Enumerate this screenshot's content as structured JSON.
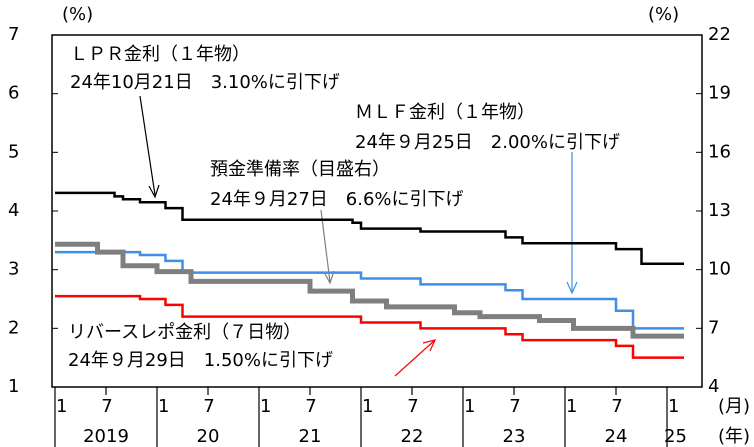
{
  "chart_data": {
    "type": "line",
    "x": [
      "2019-01",
      "2019-02",
      "2019-03",
      "2019-04",
      "2019-05",
      "2019-06",
      "2019-07",
      "2019-08",
      "2019-09",
      "2019-10",
      "2019-11",
      "2019-12",
      "2020-01",
      "2020-02",
      "2020-03",
      "2020-04",
      "2020-05",
      "2020-06",
      "2020-07",
      "2020-08",
      "2020-09",
      "2020-10",
      "2020-11",
      "2020-12",
      "2021-01",
      "2021-02",
      "2021-03",
      "2021-04",
      "2021-05",
      "2021-06",
      "2021-07",
      "2021-08",
      "2021-09",
      "2021-10",
      "2021-11",
      "2021-12",
      "2022-01",
      "2022-02",
      "2022-03",
      "2022-04",
      "2022-05",
      "2022-06",
      "2022-07",
      "2022-08",
      "2022-09",
      "2022-10",
      "2022-11",
      "2022-12",
      "2023-01",
      "2023-02",
      "2023-03",
      "2023-04",
      "2023-05",
      "2023-06",
      "2023-07",
      "2023-08",
      "2023-09",
      "2023-10",
      "2023-11",
      "2023-12",
      "2024-01",
      "2024-02",
      "2024-03",
      "2024-04",
      "2024-05",
      "2024-06",
      "2024-07",
      "2024-08",
      "2024-09",
      "2024-10",
      "2024-11",
      "2024-12",
      "2025-01",
      "2025-02",
      "2025-03"
    ],
    "xticks": [
      {
        "value": "2019-01",
        "label": "1"
      },
      {
        "value": "2019-07",
        "label": "7"
      },
      {
        "value": "2020-01",
        "label": "1"
      },
      {
        "value": "2020-07",
        "label": "7"
      },
      {
        "value": "2021-01",
        "label": "1"
      },
      {
        "value": "2021-07",
        "label": "7"
      },
      {
        "value": "2022-01",
        "label": "1"
      },
      {
        "value": "2022-07",
        "label": "7"
      },
      {
        "value": "2023-01",
        "label": "1"
      },
      {
        "value": "2023-07",
        "label": "7"
      },
      {
        "value": "2024-01",
        "label": "1"
      },
      {
        "value": "2024-07",
        "label": "7"
      },
      {
        "value": "2025-01",
        "label": "1"
      }
    ],
    "years": [
      {
        "value": "2019-07",
        "label": "2019"
      },
      {
        "value": "2020-07",
        "label": "20"
      },
      {
        "value": "2021-07",
        "label": "21"
      },
      {
        "value": "2022-07",
        "label": "22"
      },
      {
        "value": "2023-07",
        "label": "23"
      },
      {
        "value": "2024-07",
        "label": "24"
      },
      {
        "value": "2025-02",
        "label": "25"
      }
    ],
    "month_unit": "(月)",
    "year_unit": "(年)",
    "ylabel": "(%)",
    "y2label": "(%)",
    "ylim": [
      1,
      7
    ],
    "yticks": [
      1,
      2,
      3,
      4,
      5,
      6,
      7
    ],
    "y2lim": [
      4,
      22
    ],
    "y2ticks": [
      4,
      7,
      10,
      13,
      16,
      19,
      22
    ],
    "series": [
      {
        "name": "ＬＰＲ金利（１年物）",
        "note": "24年10月21日　3.10%に引下げ",
        "color": "#000000",
        "values": [
          4.31,
          4.31,
          4.31,
          4.31,
          4.31,
          4.31,
          4.31,
          4.25,
          4.2,
          4.2,
          4.15,
          4.15,
          4.15,
          4.05,
          4.05,
          3.85,
          3.85,
          3.85,
          3.85,
          3.85,
          3.85,
          3.85,
          3.85,
          3.85,
          3.85,
          3.85,
          3.85,
          3.85,
          3.85,
          3.85,
          3.85,
          3.85,
          3.85,
          3.85,
          3.85,
          3.8,
          3.7,
          3.7,
          3.7,
          3.7,
          3.7,
          3.7,
          3.7,
          3.65,
          3.65,
          3.65,
          3.65,
          3.65,
          3.65,
          3.65,
          3.65,
          3.65,
          3.65,
          3.55,
          3.55,
          3.45,
          3.45,
          3.45,
          3.45,
          3.45,
          3.45,
          3.45,
          3.45,
          3.45,
          3.45,
          3.45,
          3.35,
          3.35,
          3.35,
          3.1,
          3.1,
          3.1,
          3.1,
          3.1,
          3.1
        ]
      },
      {
        "name": "ＭＬＦ金利（１年物）",
        "note": "24年９月25日　2.00%に引下げ",
        "color": "#3d8fe8",
        "values": [
          3.3,
          3.3,
          3.3,
          3.3,
          3.3,
          3.3,
          3.3,
          3.3,
          3.3,
          3.3,
          3.25,
          3.25,
          3.25,
          3.15,
          3.15,
          2.95,
          2.95,
          2.95,
          2.95,
          2.95,
          2.95,
          2.95,
          2.95,
          2.95,
          2.95,
          2.95,
          2.95,
          2.95,
          2.95,
          2.95,
          2.95,
          2.95,
          2.95,
          2.95,
          2.95,
          2.95,
          2.85,
          2.85,
          2.85,
          2.85,
          2.85,
          2.85,
          2.85,
          2.75,
          2.75,
          2.75,
          2.75,
          2.75,
          2.75,
          2.75,
          2.75,
          2.75,
          2.75,
          2.65,
          2.65,
          2.5,
          2.5,
          2.5,
          2.5,
          2.5,
          2.5,
          2.5,
          2.5,
          2.5,
          2.5,
          2.5,
          2.3,
          2.3,
          2.0,
          2.0,
          2.0,
          2.0,
          2.0,
          2.0,
          2.0
        ]
      },
      {
        "name": "預金準備率（目盛右）",
        "note": "24年９月27日　6.6%に引下げ",
        "color": "#7f7f7f",
        "axis": "y2",
        "values": [
          11.3,
          11.3,
          11.3,
          11.3,
          11.3,
          10.9,
          10.9,
          10.9,
          10.2,
          10.2,
          10.2,
          10.2,
          9.9,
          9.9,
          9.9,
          9.9,
          9.4,
          9.4,
          9.4,
          9.4,
          9.4,
          9.4,
          9.4,
          9.4,
          9.4,
          9.4,
          9.4,
          9.4,
          9.4,
          9.4,
          8.9,
          8.9,
          8.9,
          8.9,
          8.9,
          8.4,
          8.4,
          8.4,
          8.4,
          8.1,
          8.1,
          8.1,
          8.1,
          8.1,
          8.1,
          8.1,
          8.1,
          7.8,
          7.8,
          7.8,
          7.6,
          7.6,
          7.6,
          7.6,
          7.6,
          7.6,
          7.6,
          7.4,
          7.4,
          7.4,
          7.4,
          7.0,
          7.0,
          7.0,
          7.0,
          7.0,
          7.0,
          7.0,
          6.6,
          6.6,
          6.6,
          6.6,
          6.6,
          6.6,
          6.6
        ]
      },
      {
        "name": "リバースレポ金利（７日物）",
        "note": "24年９月29日　1.50%に引下げ",
        "color": "#ff0000",
        "values": [
          2.55,
          2.55,
          2.55,
          2.55,
          2.55,
          2.55,
          2.55,
          2.55,
          2.55,
          2.55,
          2.5,
          2.5,
          2.5,
          2.4,
          2.4,
          2.2,
          2.2,
          2.2,
          2.2,
          2.2,
          2.2,
          2.2,
          2.2,
          2.2,
          2.2,
          2.2,
          2.2,
          2.2,
          2.2,
          2.2,
          2.2,
          2.2,
          2.2,
          2.2,
          2.2,
          2.2,
          2.1,
          2.1,
          2.1,
          2.1,
          2.1,
          2.1,
          2.1,
          2.0,
          2.0,
          2.0,
          2.0,
          2.0,
          2.0,
          2.0,
          2.0,
          2.0,
          2.0,
          1.9,
          1.9,
          1.8,
          1.8,
          1.8,
          1.8,
          1.8,
          1.8,
          1.8,
          1.8,
          1.8,
          1.8,
          1.8,
          1.7,
          1.7,
          1.5,
          1.5,
          1.5,
          1.5,
          1.5,
          1.5,
          1.5
        ]
      }
    ]
  }
}
